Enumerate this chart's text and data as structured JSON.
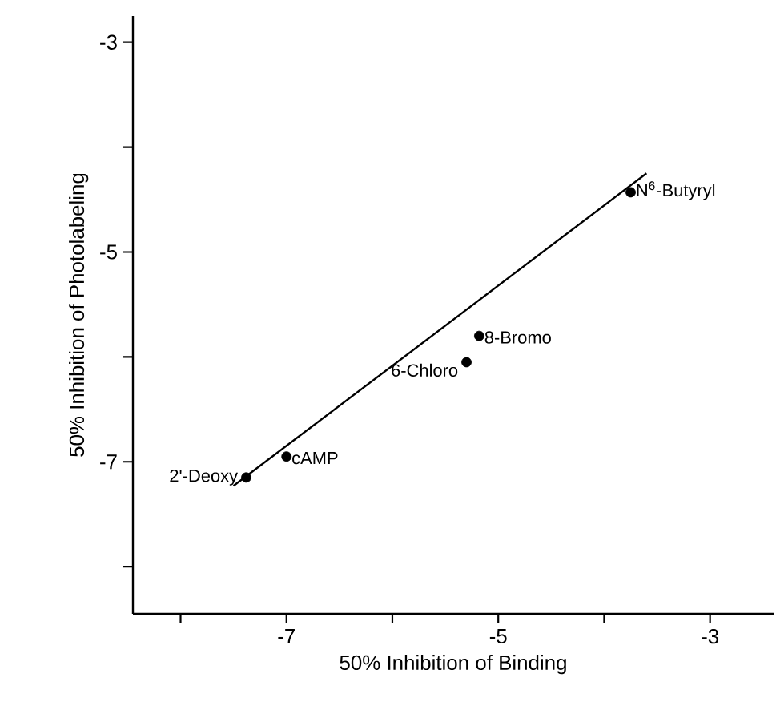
{
  "chart_data": {
    "type": "scatter",
    "xlabel": "50% Inhibition of Binding",
    "ylabel": "50% Inhibition of Photolabeling",
    "xlim": [
      -8.45,
      -2.4
    ],
    "ylim": [
      -8.45,
      -2.75
    ],
    "xticks": [
      {
        "value": -8,
        "label": null
      },
      -7,
      {
        "value": -6,
        "label": null
      },
      -5,
      {
        "value": -4,
        "label": null
      },
      -3
    ],
    "yticks": [
      {
        "value": -8,
        "label": null
      },
      -7,
      {
        "value": -6,
        "label": null
      },
      -5,
      {
        "value": -4,
        "label": null
      },
      -3
    ],
    "grid": false,
    "series": [
      {
        "color": "#000000",
        "marker": "circle",
        "x": [
          -7.38,
          -7.0,
          -5.3,
          -5.18,
          -3.75
        ],
        "values": [
          -7.15,
          -6.95,
          -6.05,
          -5.8,
          -4.43
        ]
      },
      {
        "type": "line",
        "color": "#000000",
        "marker": "none",
        "x": [
          -7.5,
          -3.6
        ],
        "values": [
          -7.23,
          -4.25
        ]
      }
    ],
    "annotations": [
      {
        "text": "2'-Deoxy",
        "x": -7.38,
        "y": -7.15
      },
      {
        "text": "cAMP",
        "x": -7.0,
        "y": -6.95
      },
      {
        "text": "6-Chloro",
        "x": -5.3,
        "y": -6.05
      },
      {
        "text": "8-Bromo",
        "x": -5.18,
        "y": -5.8
      },
      {
        "text": "N$^{6}$-Butyryl",
        "x": -3.75,
        "y": -4.43
      }
    ]
  }
}
